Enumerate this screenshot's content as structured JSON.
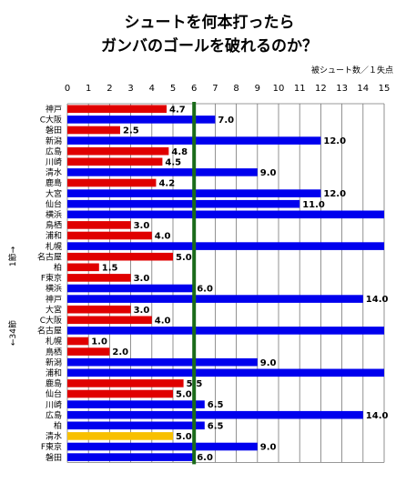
{
  "chart_data": {
    "type": "bar",
    "orientation": "horizontal",
    "title": [
      "シュートを何本打ったら",
      "ガンバのゴールを破れるのか？"
    ],
    "unit_label": "被シュート数／１失点",
    "side_label_top": "1節→",
    "side_label_bottom": "←34節",
    "xlim": [
      0,
      15
    ],
    "x_ticks": [
      "0",
      "1",
      "2",
      "3",
      "4",
      "5",
      "6",
      "7",
      "8",
      "9",
      "10",
      "11",
      "12",
      "13",
      "14",
      "15"
    ],
    "reference_line": 6,
    "grid": true,
    "colors": {
      "red": "#e00000",
      "blue": "#0000ee",
      "yellow": "#f8c000",
      "reference": "#1a6b1a",
      "grid": "#777777"
    },
    "bars": [
      {
        "team": "神戸",
        "value": 4.7,
        "label": "4.7",
        "color": "red"
      },
      {
        "team": "C大阪",
        "value": 7.0,
        "label": "7.0",
        "color": "blue"
      },
      {
        "team": "磐田",
        "value": 2.5,
        "label": "2.5",
        "color": "red"
      },
      {
        "team": "新潟",
        "value": 12.0,
        "label": "12.0",
        "color": "blue"
      },
      {
        "team": "広島",
        "value": 4.8,
        "label": "4.8",
        "color": "red"
      },
      {
        "team": "川崎",
        "value": 4.5,
        "label": "4.5",
        "color": "red"
      },
      {
        "team": "清水",
        "value": 9.0,
        "label": "9.0",
        "color": "blue"
      },
      {
        "team": "鹿島",
        "value": 4.2,
        "label": "4.2",
        "color": "red"
      },
      {
        "team": "大宮",
        "value": 12.0,
        "label": "12.0",
        "color": "blue"
      },
      {
        "team": "仙台",
        "value": 11.0,
        "label": "11.0",
        "color": "blue"
      },
      {
        "team": "横浜",
        "value": 15,
        "label": "",
        "color": "blue"
      },
      {
        "team": "鳥栖",
        "value": 3.0,
        "label": "3.0",
        "color": "red"
      },
      {
        "team": "浦和",
        "value": 4.0,
        "label": "4.0",
        "color": "red"
      },
      {
        "team": "札幌",
        "value": 15,
        "label": "",
        "color": "blue"
      },
      {
        "team": "名古屋",
        "value": 5.0,
        "label": "5.0",
        "color": "red"
      },
      {
        "team": "柏",
        "value": 1.5,
        "label": "1.5",
        "color": "red"
      },
      {
        "team": "F東京",
        "value": 3.0,
        "label": "3.0",
        "color": "red"
      },
      {
        "team": "横浜",
        "value": 6.0,
        "label": "6.0",
        "color": "blue"
      },
      {
        "team": "神戸",
        "value": 14.0,
        "label": "14.0",
        "color": "blue"
      },
      {
        "team": "大宮",
        "value": 3.0,
        "label": "3.0",
        "color": "red"
      },
      {
        "team": "C大阪",
        "value": 4.0,
        "label": "4.0",
        "color": "red"
      },
      {
        "team": "名古屋",
        "value": 15,
        "label": "",
        "color": "blue"
      },
      {
        "team": "札幌",
        "value": 1.0,
        "label": "1.0",
        "color": "red"
      },
      {
        "team": "鳥栖",
        "value": 2.0,
        "label": "2.0",
        "color": "red"
      },
      {
        "team": "新潟",
        "value": 9.0,
        "label": "9.0",
        "color": "blue"
      },
      {
        "team": "浦和",
        "value": 15,
        "label": "",
        "color": "blue"
      },
      {
        "team": "鹿島",
        "value": 5.5,
        "label": "5.5",
        "color": "red"
      },
      {
        "team": "仙台",
        "value": 5.0,
        "label": "5.0",
        "color": "red"
      },
      {
        "team": "川崎",
        "value": 6.5,
        "label": "6.5",
        "color": "blue"
      },
      {
        "team": "広島",
        "value": 14.0,
        "label": "14.0",
        "color": "blue"
      },
      {
        "team": "柏",
        "value": 6.5,
        "label": "6.5",
        "color": "blue"
      },
      {
        "team": "清水",
        "value": 5.0,
        "label": "5.0",
        "color": "yellow"
      },
      {
        "team": "F東京",
        "value": 9.0,
        "label": "9.0",
        "color": "blue"
      },
      {
        "team": "磐田",
        "value": 6.0,
        "label": "6.0",
        "color": "blue"
      }
    ]
  }
}
